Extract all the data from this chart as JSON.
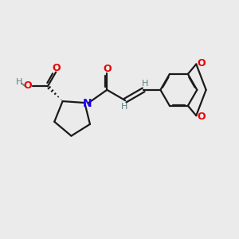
{
  "bg_color": "#ebebeb",
  "bond_color": "#1a1a1a",
  "N_color": "#1400ff",
  "O_color": "#e80000",
  "H_color": "#5a8080",
  "font_size": 9,
  "line_width": 1.6,
  "xlim": [
    0,
    10
  ],
  "ylim": [
    0,
    10
  ]
}
